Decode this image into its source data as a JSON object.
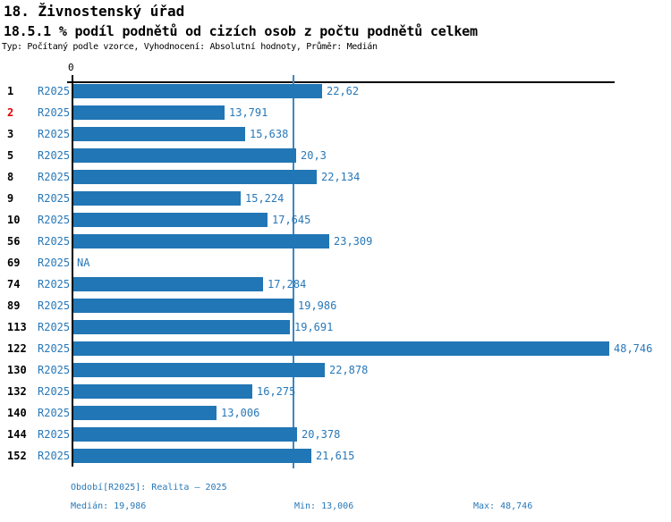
{
  "header": {
    "title": "18. Živnostenský úřad",
    "subtitle": "18.5.1 % podíl podnětů od cizích osob z počtu podnětů celkem",
    "meta": "Typ: Počítaný podle vzorce, Vyhodnocení: Absolutní hodnoty, Průměr: Medián"
  },
  "chart_data": {
    "type": "bar",
    "orientation": "horizontal",
    "title": "18.5.1 % podíl podnětů od cizích osob z počtu podnětů celkem",
    "series_label": "R2025",
    "x_axis": {
      "zero_label": "0",
      "min": 0,
      "max_shown": 48.746,
      "gridlines": false
    },
    "categories": [
      "1",
      "2",
      "3",
      "5",
      "8",
      "9",
      "10",
      "56",
      "69",
      "74",
      "89",
      "113",
      "122",
      "130",
      "132",
      "140",
      "144",
      "152"
    ],
    "rows": [
      {
        "category": "1",
        "value": 22.62,
        "display": "22,62",
        "flagged": false
      },
      {
        "category": "2",
        "value": 13.791,
        "display": "13,791",
        "flagged": true
      },
      {
        "category": "3",
        "value": 15.638,
        "display": "15,638",
        "flagged": false
      },
      {
        "category": "5",
        "value": 20.3,
        "display": "20,3",
        "flagged": false
      },
      {
        "category": "8",
        "value": 22.134,
        "display": "22,134",
        "flagged": false
      },
      {
        "category": "9",
        "value": 15.224,
        "display": "15,224",
        "flagged": false
      },
      {
        "category": "10",
        "value": 17.645,
        "display": "17,645",
        "flagged": false
      },
      {
        "category": "56",
        "value": 23.309,
        "display": "23,309",
        "flagged": false
      },
      {
        "category": "69",
        "value": null,
        "display": "NA",
        "flagged": false
      },
      {
        "category": "74",
        "value": 17.284,
        "display": "17,284",
        "flagged": false
      },
      {
        "category": "89",
        "value": 19.986,
        "display": "19,986",
        "flagged": false
      },
      {
        "category": "113",
        "value": 19.691,
        "display": "19,691",
        "flagged": false
      },
      {
        "category": "122",
        "value": 48.746,
        "display": "48,746",
        "flagged": false
      },
      {
        "category": "130",
        "value": 22.878,
        "display": "22,878",
        "flagged": false
      },
      {
        "category": "132",
        "value": 16.275,
        "display": "16,275",
        "flagged": false
      },
      {
        "category": "140",
        "value": 13.006,
        "display": "13,006",
        "flagged": false
      },
      {
        "category": "144",
        "value": 20.378,
        "display": "20,378",
        "flagged": false
      },
      {
        "category": "152",
        "value": 21.615,
        "display": "21,615",
        "flagged": false
      }
    ],
    "median": 19.986,
    "min": 13.006,
    "max": 48.746,
    "legend_position": "none",
    "colors": {
      "bar": "#2176b5",
      "median_line": "#3d88c0",
      "label_blue": "#2878b8",
      "flagged_red": "#dd0000",
      "axis_black": "#000000"
    }
  },
  "footer": {
    "period": "Období[R2025]: Realita – 2025",
    "median": "Medián: 19,986",
    "min": "Min: 13,006",
    "max": "Max: 48,746"
  }
}
